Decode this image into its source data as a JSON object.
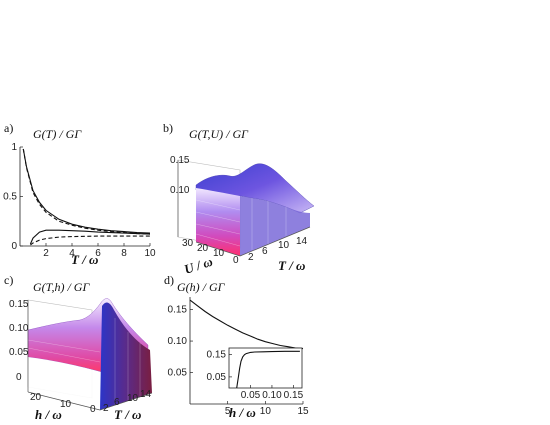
{
  "chart_data": [
    {
      "panel_label": "a)",
      "type": "line",
      "title": "G(T) / GΓ",
      "xlabel": "T / ω",
      "xlim": [
        0,
        10
      ],
      "ylim": [
        0,
        1
      ],
      "xticks": [
        "2",
        "4",
        "6",
        "8",
        "10"
      ],
      "yticks": [
        "0",
        "0.5",
        "1"
      ],
      "series": [
        {
          "style": "solid",
          "x": [
            0.25,
            0.5,
            1,
            1.5,
            2,
            3,
            4,
            5,
            6,
            7,
            8,
            9,
            10
          ],
          "values": [
            0.98,
            0.8,
            0.56,
            0.44,
            0.36,
            0.27,
            0.22,
            0.19,
            0.17,
            0.155,
            0.145,
            0.135,
            0.13
          ]
        },
        {
          "style": "dashed",
          "x": [
            0.25,
            0.5,
            1,
            1.5,
            2,
            3,
            4,
            5,
            6,
            7,
            8,
            9,
            10
          ],
          "values": [
            0.98,
            0.79,
            0.54,
            0.42,
            0.34,
            0.25,
            0.21,
            0.18,
            0.16,
            0.145,
            0.135,
            0.125,
            0.12
          ]
        },
        {
          "style": "solid",
          "x": [
            0.8,
            1,
            1.5,
            2,
            3,
            4,
            5,
            6,
            7,
            8,
            9,
            10
          ],
          "values": [
            0.02,
            0.08,
            0.14,
            0.16,
            0.16,
            0.155,
            0.15,
            0.14,
            0.135,
            0.13,
            0.125,
            0.12
          ]
        },
        {
          "style": "dashed",
          "x": [
            0.8,
            1,
            1.5,
            2,
            3,
            4,
            5,
            6,
            7,
            8,
            9,
            10
          ],
          "values": [
            0.01,
            0.03,
            0.06,
            0.075,
            0.09,
            0.095,
            0.098,
            0.1,
            0.1,
            0.1,
            0.1,
            0.1
          ]
        }
      ]
    },
    {
      "panel_label": "b)",
      "type": "surface",
      "title": "G(T,U) / GΓ",
      "xlabel": "T / ω",
      "ylabel": "U / ω",
      "xticks": [
        "2",
        "6",
        "10",
        "14"
      ],
      "uticks": [
        "0",
        "10",
        "20",
        "30"
      ],
      "zticks": [
        "0.10",
        "0.15"
      ],
      "z_range": [
        0.08,
        0.165
      ]
    },
    {
      "panel_label": "c)",
      "type": "surface",
      "title": "G(T,h) / GΓ",
      "xlabel": "T / ω",
      "ylabel": "h / ω",
      "xticks": [
        "2",
        "6",
        "10",
        "14"
      ],
      "hticks": [
        "0",
        "10",
        "20"
      ],
      "zticks": [
        "0",
        "0.05",
        "0.10",
        "0.15"
      ],
      "z_range": [
        0,
        0.165
      ]
    },
    {
      "panel_label": "d)",
      "type": "line",
      "title": "G(h) / GΓ",
      "xlabel": "h / ω",
      "xlim": [
        0,
        15
      ],
      "ylim": [
        0,
        0.17
      ],
      "xticks": [
        "5",
        "10",
        "15"
      ],
      "yticks": [
        "0.05",
        "0.10",
        "0.15"
      ],
      "series": [
        {
          "style": "solid",
          "x": [
            0,
            1,
            2,
            3,
            4,
            5,
            6,
            7,
            8,
            9,
            10,
            11,
            12,
            13,
            14,
            15
          ],
          "values": [
            0.165,
            0.156,
            0.147,
            0.139,
            0.132,
            0.125,
            0.119,
            0.113,
            0.108,
            0.103,
            0.099,
            0.096,
            0.093,
            0.091,
            0.089,
            0.088
          ]
        }
      ],
      "inset": {
        "xlim": [
          0,
          0.17
        ],
        "ylim": [
          0,
          0.18
        ],
        "xticks": [
          "0.05",
          "0.10",
          "0.15"
        ],
        "yticks": [
          "0.05",
          "0.15"
        ],
        "series": [
          {
            "style": "solid",
            "x": [
              0.018,
              0.022,
              0.025,
              0.028,
              0.032,
              0.036,
              0.04,
              0.05,
              0.06,
              0.08,
              0.1,
              0.13,
              0.165
            ],
            "values": [
              0.0,
              0.05,
              0.09,
              0.12,
              0.14,
              0.15,
              0.155,
              0.16,
              0.162,
              0.163,
              0.164,
              0.165,
              0.165
            ]
          }
        ]
      }
    }
  ]
}
